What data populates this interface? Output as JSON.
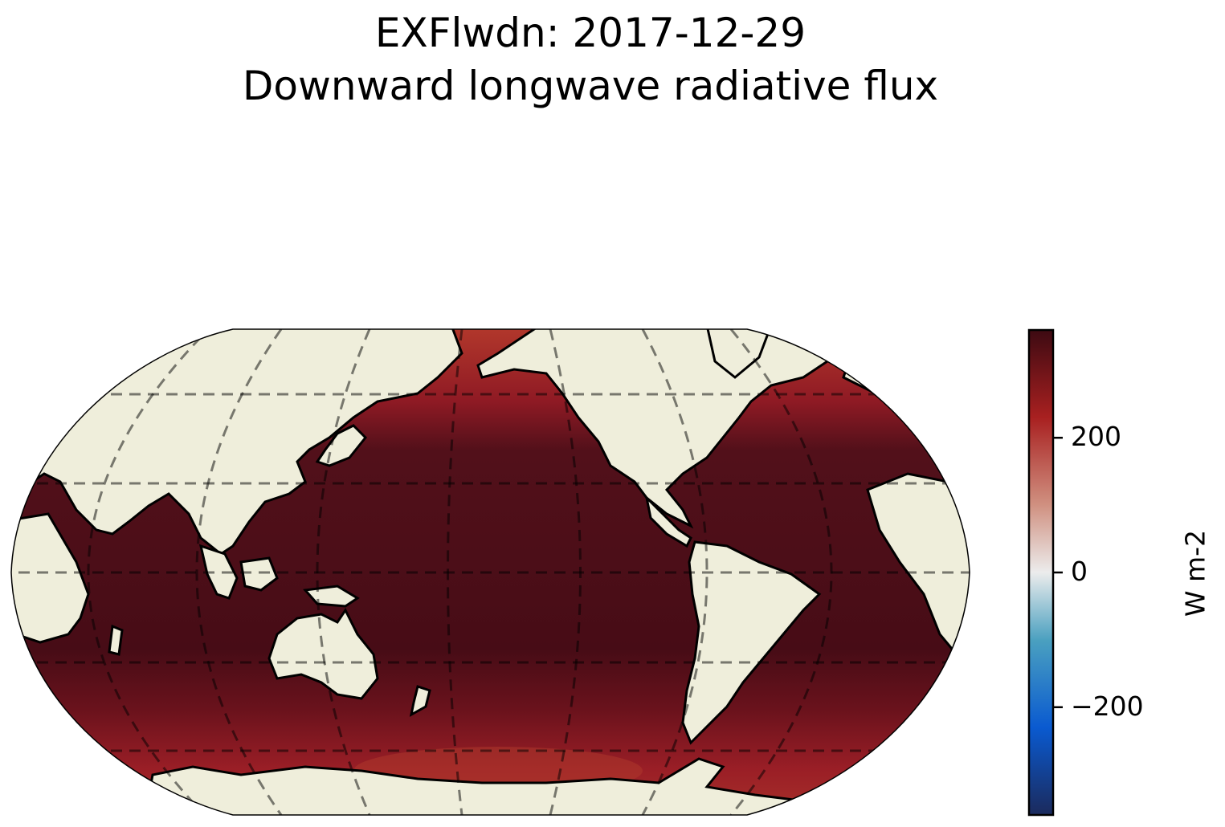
{
  "title": {
    "line1": "EXFlwdn: 2017-12-29",
    "line2": "Downward longwave radiative flux"
  },
  "colorbar": {
    "label": "W m-2",
    "ticks": [
      {
        "value": 200,
        "label": "200"
      },
      {
        "value": 0,
        "label": "0"
      },
      {
        "value": -200,
        "label": "−200"
      }
    ],
    "range": [
      -360,
      360
    ],
    "colormap": [
      "#1b2a5c",
      "#0a5ad0",
      "#4aa0c0",
      "#e8e8e8",
      "#d09080",
      "#a82020",
      "#3d0a12"
    ]
  },
  "map": {
    "projection": "Robinson",
    "central_longitude": 180,
    "land_color": "#efeedb",
    "ocean_color_tropics": "#470c16",
    "ocean_color_high_latitude": "#9a1a24",
    "gridlines": true,
    "gridline_style": "dashed"
  }
}
